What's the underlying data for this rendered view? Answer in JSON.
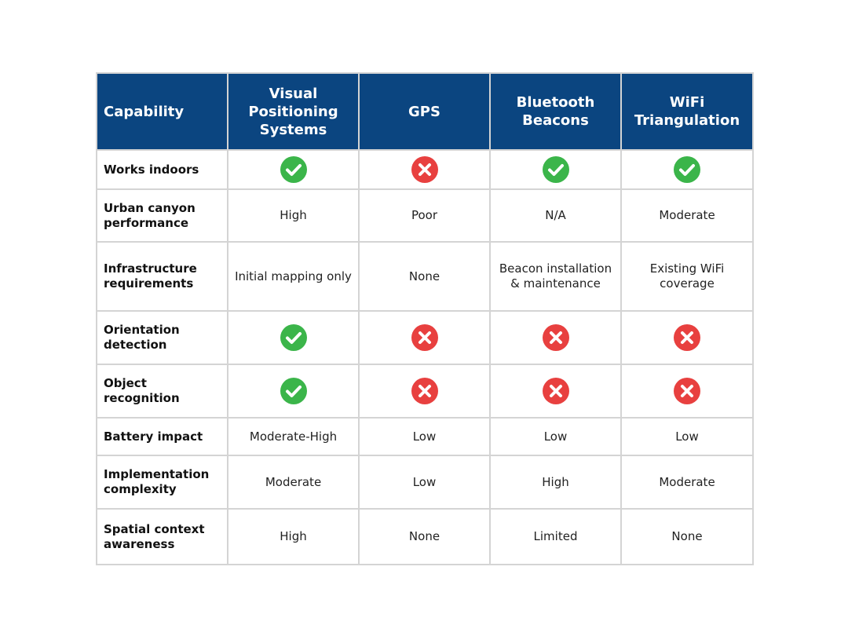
{
  "table": {
    "header": [
      "Capability",
      "Visual Positioning Systems",
      "GPS",
      "Bluetooth Beacons",
      "WiFi Triangulation"
    ],
    "rows": [
      [
        "Works indoors",
        null,
        null,
        null,
        null
      ],
      [
        "Urban canyon performance",
        "High",
        "Poor",
        "N/A",
        "Moderate"
      ],
      [
        "Infrastructure requirements",
        "Initial mapping only",
        "None",
        "Beacon installation & maintenance",
        "Existing WiFi coverage"
      ],
      [
        "Orientation detection",
        null,
        null,
        null,
        null
      ],
      [
        "Object recognition",
        null,
        null,
        null,
        null
      ],
      [
        "Battery impact",
        "Moderate-High",
        "Low",
        "Low",
        "Low"
      ],
      [
        "Implementation complexity",
        "Moderate",
        "Low",
        "High",
        "Moderate"
      ],
      [
        "Spatial context awareness",
        "High",
        "None",
        "Limited",
        "None"
      ]
    ]
  }
}
